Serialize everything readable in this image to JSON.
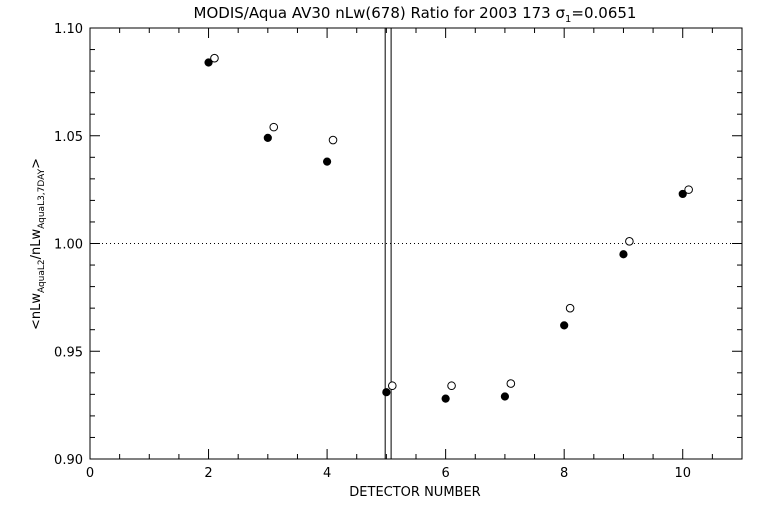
{
  "chart_data": {
    "type": "scatter",
    "title_main": "MODIS/Aqua AV30 nLw(678) Ratio for 2003 173 ",
    "title_sigma": "σ",
    "title_sigma_sub": "1",
    "title_sigma_value": "=0.0651",
    "xlabel": "DETECTOR NUMBER",
    "ylabel_parts": {
      "open": "<nLw",
      "sub1": "AquaL2",
      "mid": "/nLw",
      "sub2": "AquaL3,7DAY",
      "close": ">"
    },
    "xlim": [
      0,
      11
    ],
    "ylim": [
      0.9,
      1.1
    ],
    "x_major_ticks": [
      0,
      2,
      4,
      6,
      8,
      10
    ],
    "x_minor_step": 0.5,
    "y_major_ticks": [
      0.9,
      0.95,
      1.0,
      1.05,
      1.1
    ],
    "y_minor_step": 0.01,
    "x_tick_labels": [
      "0",
      "2",
      "4",
      "6",
      "8",
      "10"
    ],
    "y_tick_labels": [
      "0.90",
      "0.95",
      "1.00",
      "1.05",
      "1.10"
    ],
    "reference_line_y": 1.0,
    "vertical_lines_x": [
      4.98,
      5.08
    ],
    "series": [
      {
        "marker": "filled-circle",
        "x": [
          2,
          3,
          4,
          5,
          6,
          7,
          8,
          9,
          10
        ],
        "y": [
          1.084,
          1.049,
          1.038,
          0.931,
          0.928,
          0.929,
          0.962,
          0.995,
          1.023
        ]
      },
      {
        "marker": "open-circle",
        "x": [
          2.1,
          3.1,
          4.1,
          5.1,
          6.1,
          7.1,
          8.1,
          9.1,
          10.1
        ],
        "y": [
          1.086,
          1.054,
          1.048,
          0.934,
          0.934,
          0.935,
          0.97,
          1.001,
          1.025
        ]
      }
    ]
  }
}
